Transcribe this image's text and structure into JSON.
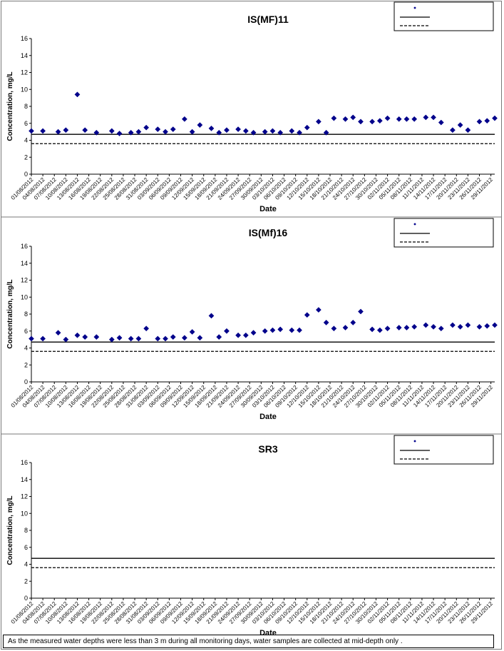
{
  "chart_data": [
    {
      "type": "scatter",
      "title": "IS(MF)11",
      "xlabel": "Date",
      "ylabel": "Concentration, mg/L",
      "ylim": [
        0,
        16
      ],
      "yticks": [
        0,
        2,
        4,
        6,
        8,
        10,
        12,
        14,
        16
      ],
      "xlim": [
        "2012-08-01",
        "2012-11-30"
      ],
      "grid": false,
      "legend_position": "top-right",
      "series": [
        {
          "kind": "points",
          "color": "#00008b",
          "x": [
            "2012-08-01",
            "2012-08-04",
            "2012-08-08",
            "2012-08-10",
            "2012-08-13",
            "2012-08-15",
            "2012-08-18",
            "2012-08-22",
            "2012-08-24",
            "2012-08-27",
            "2012-08-29",
            "2012-08-31",
            "2012-09-03",
            "2012-09-05",
            "2012-09-07",
            "2012-09-10",
            "2012-09-12",
            "2012-09-14",
            "2012-09-17",
            "2012-09-19",
            "2012-09-21",
            "2012-09-24",
            "2012-09-26",
            "2012-09-28",
            "2012-10-01",
            "2012-10-03",
            "2012-10-05",
            "2012-10-08",
            "2012-10-10",
            "2012-10-12",
            "2012-10-15",
            "2012-10-17",
            "2012-10-19",
            "2012-10-22",
            "2012-10-24",
            "2012-10-26",
            "2012-10-29",
            "2012-10-31",
            "2012-11-02",
            "2012-11-05",
            "2012-11-07",
            "2012-11-09",
            "2012-11-12",
            "2012-11-14",
            "2012-11-16",
            "2012-11-19",
            "2012-11-21",
            "2012-11-23",
            "2012-11-26",
            "2012-11-28",
            "2012-11-30"
          ],
          "y": [
            5.1,
            5.1,
            5.0,
            5.2,
            9.4,
            5.2,
            4.9,
            5.1,
            4.8,
            4.9,
            5.0,
            5.5,
            5.3,
            5.0,
            5.3,
            6.5,
            5.0,
            5.8,
            5.4,
            4.9,
            5.2,
            5.3,
            5.1,
            4.9,
            5.0,
            5.1,
            4.9,
            5.1,
            4.9,
            5.5,
            6.2,
            4.9,
            6.6,
            6.5,
            6.7,
            6.2,
            6.2,
            6.3,
            6.6,
            6.5,
            6.5,
            6.5,
            6.7,
            6.7,
            6.1,
            5.2,
            5.8,
            5.2,
            6.2,
            6.3,
            6.6
          ]
        },
        {
          "kind": "line",
          "style": "solid",
          "y": 4.7
        },
        {
          "kind": "line",
          "style": "dashed",
          "y": 3.6
        }
      ]
    },
    {
      "type": "scatter",
      "title": "IS(Mf)16",
      "xlabel": "Date",
      "ylabel": "Concentration, mg/L",
      "ylim": [
        0,
        16
      ],
      "yticks": [
        0,
        2,
        4,
        6,
        8,
        10,
        12,
        14,
        16
      ],
      "xlim": [
        "2012-08-01",
        "2012-11-30"
      ],
      "grid": false,
      "legend_position": "top-right",
      "series": [
        {
          "kind": "points",
          "color": "#00008b",
          "x": [
            "2012-08-01",
            "2012-08-04",
            "2012-08-08",
            "2012-08-10",
            "2012-08-13",
            "2012-08-15",
            "2012-08-18",
            "2012-08-22",
            "2012-08-24",
            "2012-08-27",
            "2012-08-29",
            "2012-08-31",
            "2012-09-03",
            "2012-09-05",
            "2012-09-07",
            "2012-09-10",
            "2012-09-12",
            "2012-09-14",
            "2012-09-17",
            "2012-09-19",
            "2012-09-21",
            "2012-09-24",
            "2012-09-26",
            "2012-09-28",
            "2012-10-01",
            "2012-10-03",
            "2012-10-05",
            "2012-10-08",
            "2012-10-10",
            "2012-10-12",
            "2012-10-15",
            "2012-10-17",
            "2012-10-19",
            "2012-10-22",
            "2012-10-24",
            "2012-10-26",
            "2012-10-29",
            "2012-10-31",
            "2012-11-02",
            "2012-11-05",
            "2012-11-07",
            "2012-11-09",
            "2012-11-12",
            "2012-11-14",
            "2012-11-16",
            "2012-11-19",
            "2012-11-21",
            "2012-11-23",
            "2012-11-26",
            "2012-11-28",
            "2012-11-30"
          ],
          "y": [
            5.1,
            5.1,
            5.8,
            5.0,
            5.5,
            5.3,
            5.3,
            5.0,
            5.2,
            5.1,
            5.1,
            6.3,
            5.1,
            5.1,
            5.3,
            5.2,
            5.9,
            5.2,
            7.8,
            5.3,
            6.0,
            5.5,
            5.5,
            5.8,
            6.0,
            6.1,
            6.2,
            6.1,
            6.1,
            7.9,
            8.5,
            7.0,
            6.3,
            6.4,
            7.0,
            8.3,
            6.2,
            6.1,
            6.3,
            6.4,
            6.4,
            6.5,
            6.7,
            6.5,
            6.3,
            6.7,
            6.5,
            6.7,
            6.5,
            6.6,
            6.7
          ]
        },
        {
          "kind": "line",
          "style": "solid",
          "y": 4.7
        },
        {
          "kind": "line",
          "style": "dashed",
          "y": 3.6
        }
      ]
    },
    {
      "type": "scatter",
      "title": "SR3",
      "xlabel": "Date",
      "ylabel": "Concentration, mg/L",
      "ylim": [
        0,
        16
      ],
      "yticks": [
        0,
        2,
        4,
        6,
        8,
        10,
        12,
        14,
        16
      ],
      "xlim": [
        "2012-08-01",
        "2012-11-30"
      ],
      "grid": false,
      "legend_position": "top-right",
      "series": [
        {
          "kind": "points",
          "color": "#00008b",
          "x": [],
          "y": []
        },
        {
          "kind": "line",
          "style": "solid",
          "y": 4.7
        },
        {
          "kind": "line",
          "style": "dashed",
          "y": 3.6
        }
      ]
    }
  ],
  "xtick_labels": [
    "01/08/2012",
    "04/08/2012",
    "07/08/2012",
    "10/08/2012",
    "13/08/2012",
    "16/08/2012",
    "19/08/2012",
    "22/08/2012",
    "25/08/2012",
    "28/08/2012",
    "31/08/2012",
    "03/09/2012",
    "06/09/2012",
    "09/09/2012",
    "12/09/2012",
    "15/09/2012",
    "18/09/2012",
    "21/09/2012",
    "24/09/2012",
    "27/09/2012",
    "30/09/2012",
    "03/10/2012",
    "06/10/2012",
    "09/10/2012",
    "12/10/2012",
    "15/10/2012",
    "18/10/2012",
    "21/10/2012",
    "24/10/2012",
    "27/10/2012",
    "30/10/2012",
    "02/11/2012",
    "05/11/2012",
    "08/11/2012",
    "11/11/2012",
    "14/11/2012",
    "17/11/2012",
    "20/11/2012",
    "23/11/2012",
    "26/11/2012",
    "29/11/2012"
  ],
  "note": "As the measured water depths were less than 3 m during all monitoring days, water samples are collected  at mid-depth only ."
}
